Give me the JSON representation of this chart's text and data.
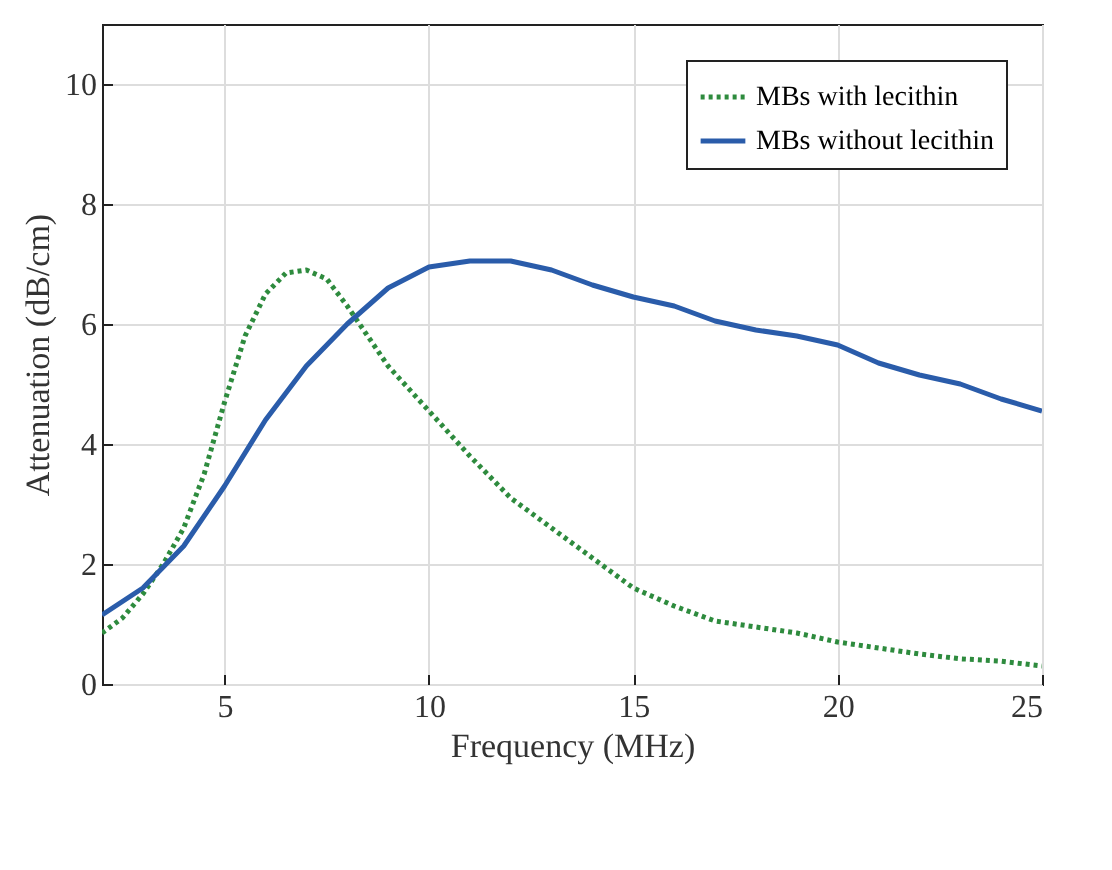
{
  "chart_data": {
    "type": "line",
    "xlabel": "Frequency (MHz)",
    "ylabel": "Attenuation (dB/cm)",
    "xlim": [
      2,
      25
    ],
    "xticks": [
      5,
      10,
      15,
      20,
      25
    ],
    "ylim": [
      0,
      11
    ],
    "yticks": [
      0,
      2,
      4,
      6,
      8,
      10
    ],
    "grid": true,
    "legend": "top right",
    "series": [
      {
        "name": "MBs with lecithin",
        "color": "#2e8b3e",
        "line_style": "dotted",
        "x": [
          2,
          2.5,
          3,
          3.5,
          4,
          4.5,
          5,
          5.5,
          6,
          6.5,
          7,
          7.5,
          8,
          8.5,
          9,
          10,
          11,
          12,
          13,
          14,
          15,
          16,
          17,
          18,
          19,
          20,
          21,
          22,
          23,
          24,
          25
        ],
        "values": [
          0.85,
          1.1,
          1.5,
          2.0,
          2.6,
          3.5,
          4.7,
          5.8,
          6.5,
          6.85,
          6.9,
          6.75,
          6.3,
          5.8,
          5.3,
          4.55,
          3.8,
          3.1,
          2.6,
          2.1,
          1.6,
          1.3,
          1.05,
          0.95,
          0.85,
          0.7,
          0.6,
          0.5,
          0.42,
          0.38,
          0.3
        ]
      },
      {
        "name": "MBs without lecithin",
        "color": "#2a5caa",
        "line_style": "solid",
        "x": [
          2,
          3,
          4,
          5,
          6,
          7,
          8,
          9,
          10,
          11,
          12,
          13,
          14,
          15,
          16,
          17,
          18,
          19,
          20,
          21,
          22,
          23,
          24,
          25
        ],
        "values": [
          1.15,
          1.6,
          2.3,
          3.3,
          4.4,
          5.3,
          6.0,
          6.6,
          6.95,
          7.05,
          7.05,
          6.9,
          6.65,
          6.45,
          6.3,
          6.05,
          5.9,
          5.8,
          5.65,
          5.35,
          5.15,
          5.0,
          4.75,
          4.55
        ]
      }
    ]
  }
}
